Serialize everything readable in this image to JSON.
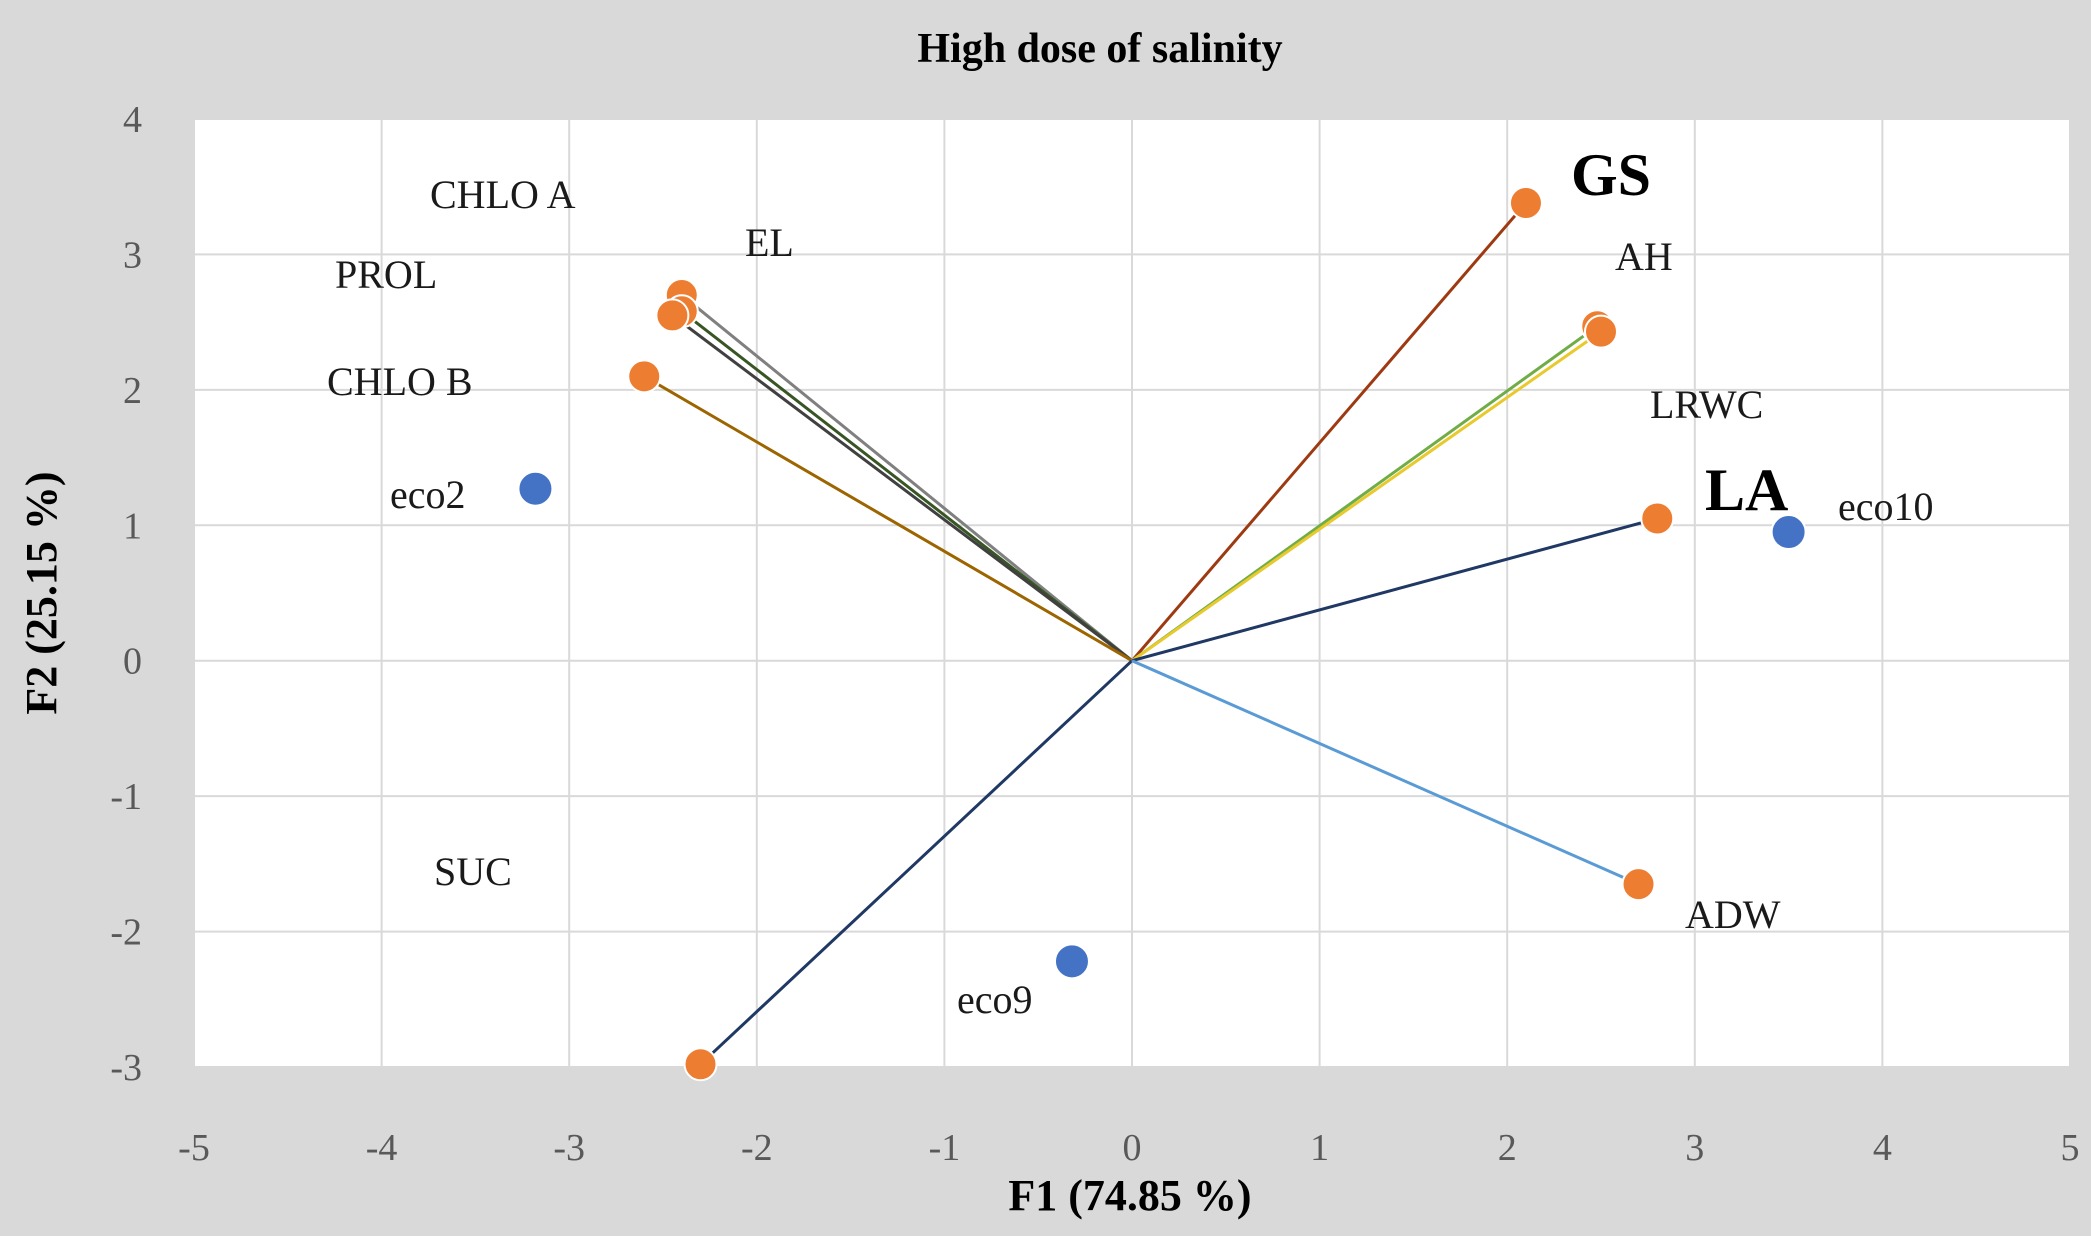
{
  "chart_data": {
    "type": "scatter",
    "subtype": "pca-biplot",
    "title": "High dose of salinity",
    "xlabel": "F1 (74.85 %)",
    "ylabel": "F2 (25.15 %)",
    "xlim": [
      -5,
      5
    ],
    "ylim": [
      -3,
      4
    ],
    "x_ticks": [
      "-5",
      "-4",
      "-3",
      "-2",
      "-1",
      "0",
      "1",
      "2",
      "3",
      "4",
      "5"
    ],
    "y_ticks": [
      "4",
      "3",
      "2",
      "1",
      "0",
      "-1",
      "-2",
      "-3"
    ],
    "grid": true,
    "legend": "none",
    "background_color": "#d9d9d9",
    "plot_color": "#ffffff",
    "variables": [
      {
        "label": "CHLO A",
        "x": -2.4,
        "y": 2.7,
        "color": "#808080",
        "bold": false
      },
      {
        "label": "EL",
        "x": -2.4,
        "y": 2.58,
        "color": "#375623",
        "bold": false
      },
      {
        "label": "PROL",
        "x": -2.45,
        "y": 2.55,
        "color": "#404040",
        "bold": false
      },
      {
        "label": "CHLO B",
        "x": -2.6,
        "y": 2.1,
        "color": "#9c6500",
        "bold": false
      },
      {
        "label": "SUC",
        "x": -2.3,
        "y": -2.98,
        "color": "#1f3864",
        "bold": false
      },
      {
        "label": "GS",
        "x": 2.1,
        "y": 3.38,
        "color": "#9e3a12",
        "bold": true
      },
      {
        "label": "AH",
        "x": 2.48,
        "y": 2.47,
        "color": "#70ad47",
        "bold": false
      },
      {
        "label": "LRWC",
        "x": 2.5,
        "y": 2.43,
        "color": "#e8c92e",
        "bold": false
      },
      {
        "label": "LA",
        "x": 2.8,
        "y": 1.05,
        "color": "#1f3864",
        "bold": true
      },
      {
        "label": "ADW",
        "x": 2.7,
        "y": -1.65,
        "color": "#5b9bd5",
        "bold": false
      }
    ],
    "observations": [
      {
        "label": "eco2",
        "x": -3.18,
        "y": 1.27
      },
      {
        "label": "eco10",
        "x": 3.5,
        "y": 0.95
      },
      {
        "label": "eco9",
        "x": -0.32,
        "y": -2.22
      }
    ],
    "variable_marker_color": "#ed7d31",
    "observation_marker_color": "#4472c4"
  }
}
